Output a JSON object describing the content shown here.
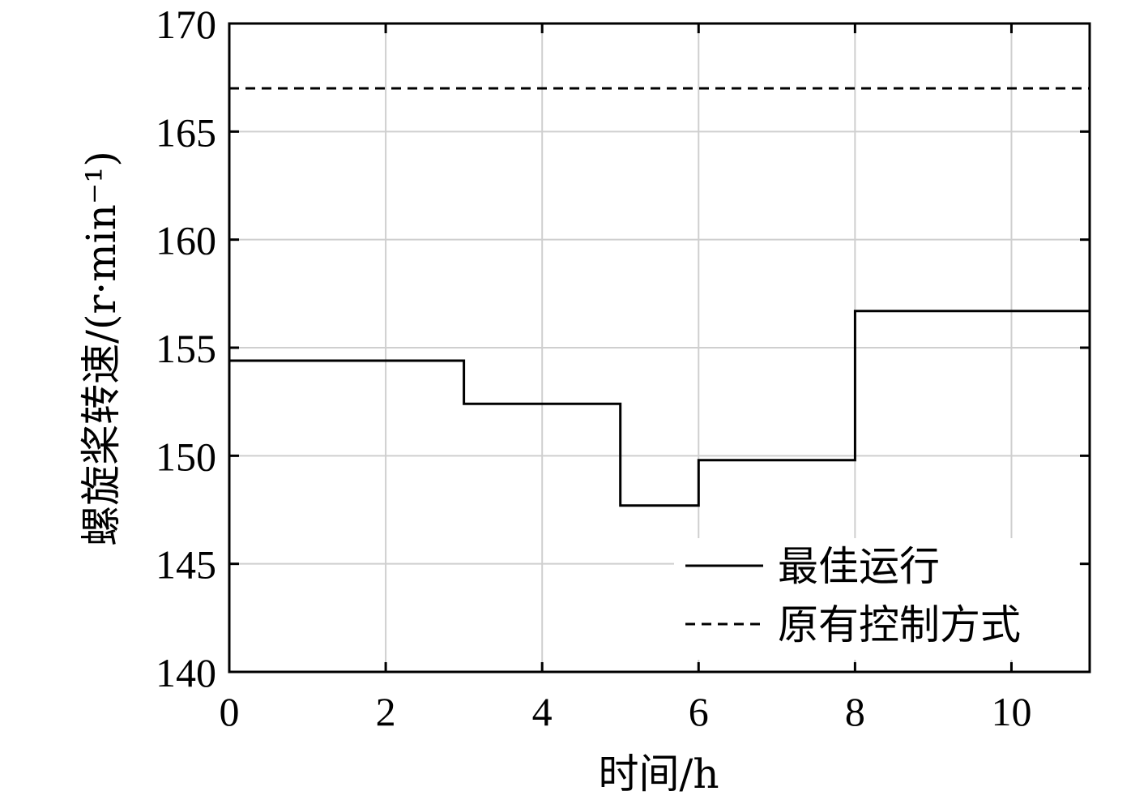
{
  "chart_data": {
    "type": "line",
    "xlabel": "时间/h",
    "ylabel": "螺旋桨转速/(r·min⁻¹)",
    "xlim": [
      0,
      11
    ],
    "ylim": [
      140,
      170
    ],
    "xticks": [
      0,
      2,
      4,
      6,
      8,
      10
    ],
    "yticks": [
      140,
      145,
      150,
      155,
      160,
      165,
      170
    ],
    "xtick_labels": [
      "0",
      "2",
      "4",
      "6",
      "8",
      "10"
    ],
    "ytick_labels": [
      "140",
      "145",
      "150",
      "155",
      "160",
      "165",
      "170"
    ],
    "grid": true,
    "legend_position": "bottom-right",
    "series": [
      {
        "name": "最佳运行",
        "style": "solid",
        "color": "#000000",
        "x": [
          0,
          3,
          3,
          5,
          5,
          6,
          6,
          8,
          8,
          11
        ],
        "y": [
          154.4,
          154.4,
          152.4,
          152.4,
          147.7,
          147.7,
          149.8,
          149.8,
          156.7,
          156.7
        ]
      },
      {
        "name": "原有控制方式",
        "style": "dashed",
        "color": "#000000",
        "x": [
          0,
          11
        ],
        "y": [
          167,
          167
        ]
      }
    ]
  }
}
